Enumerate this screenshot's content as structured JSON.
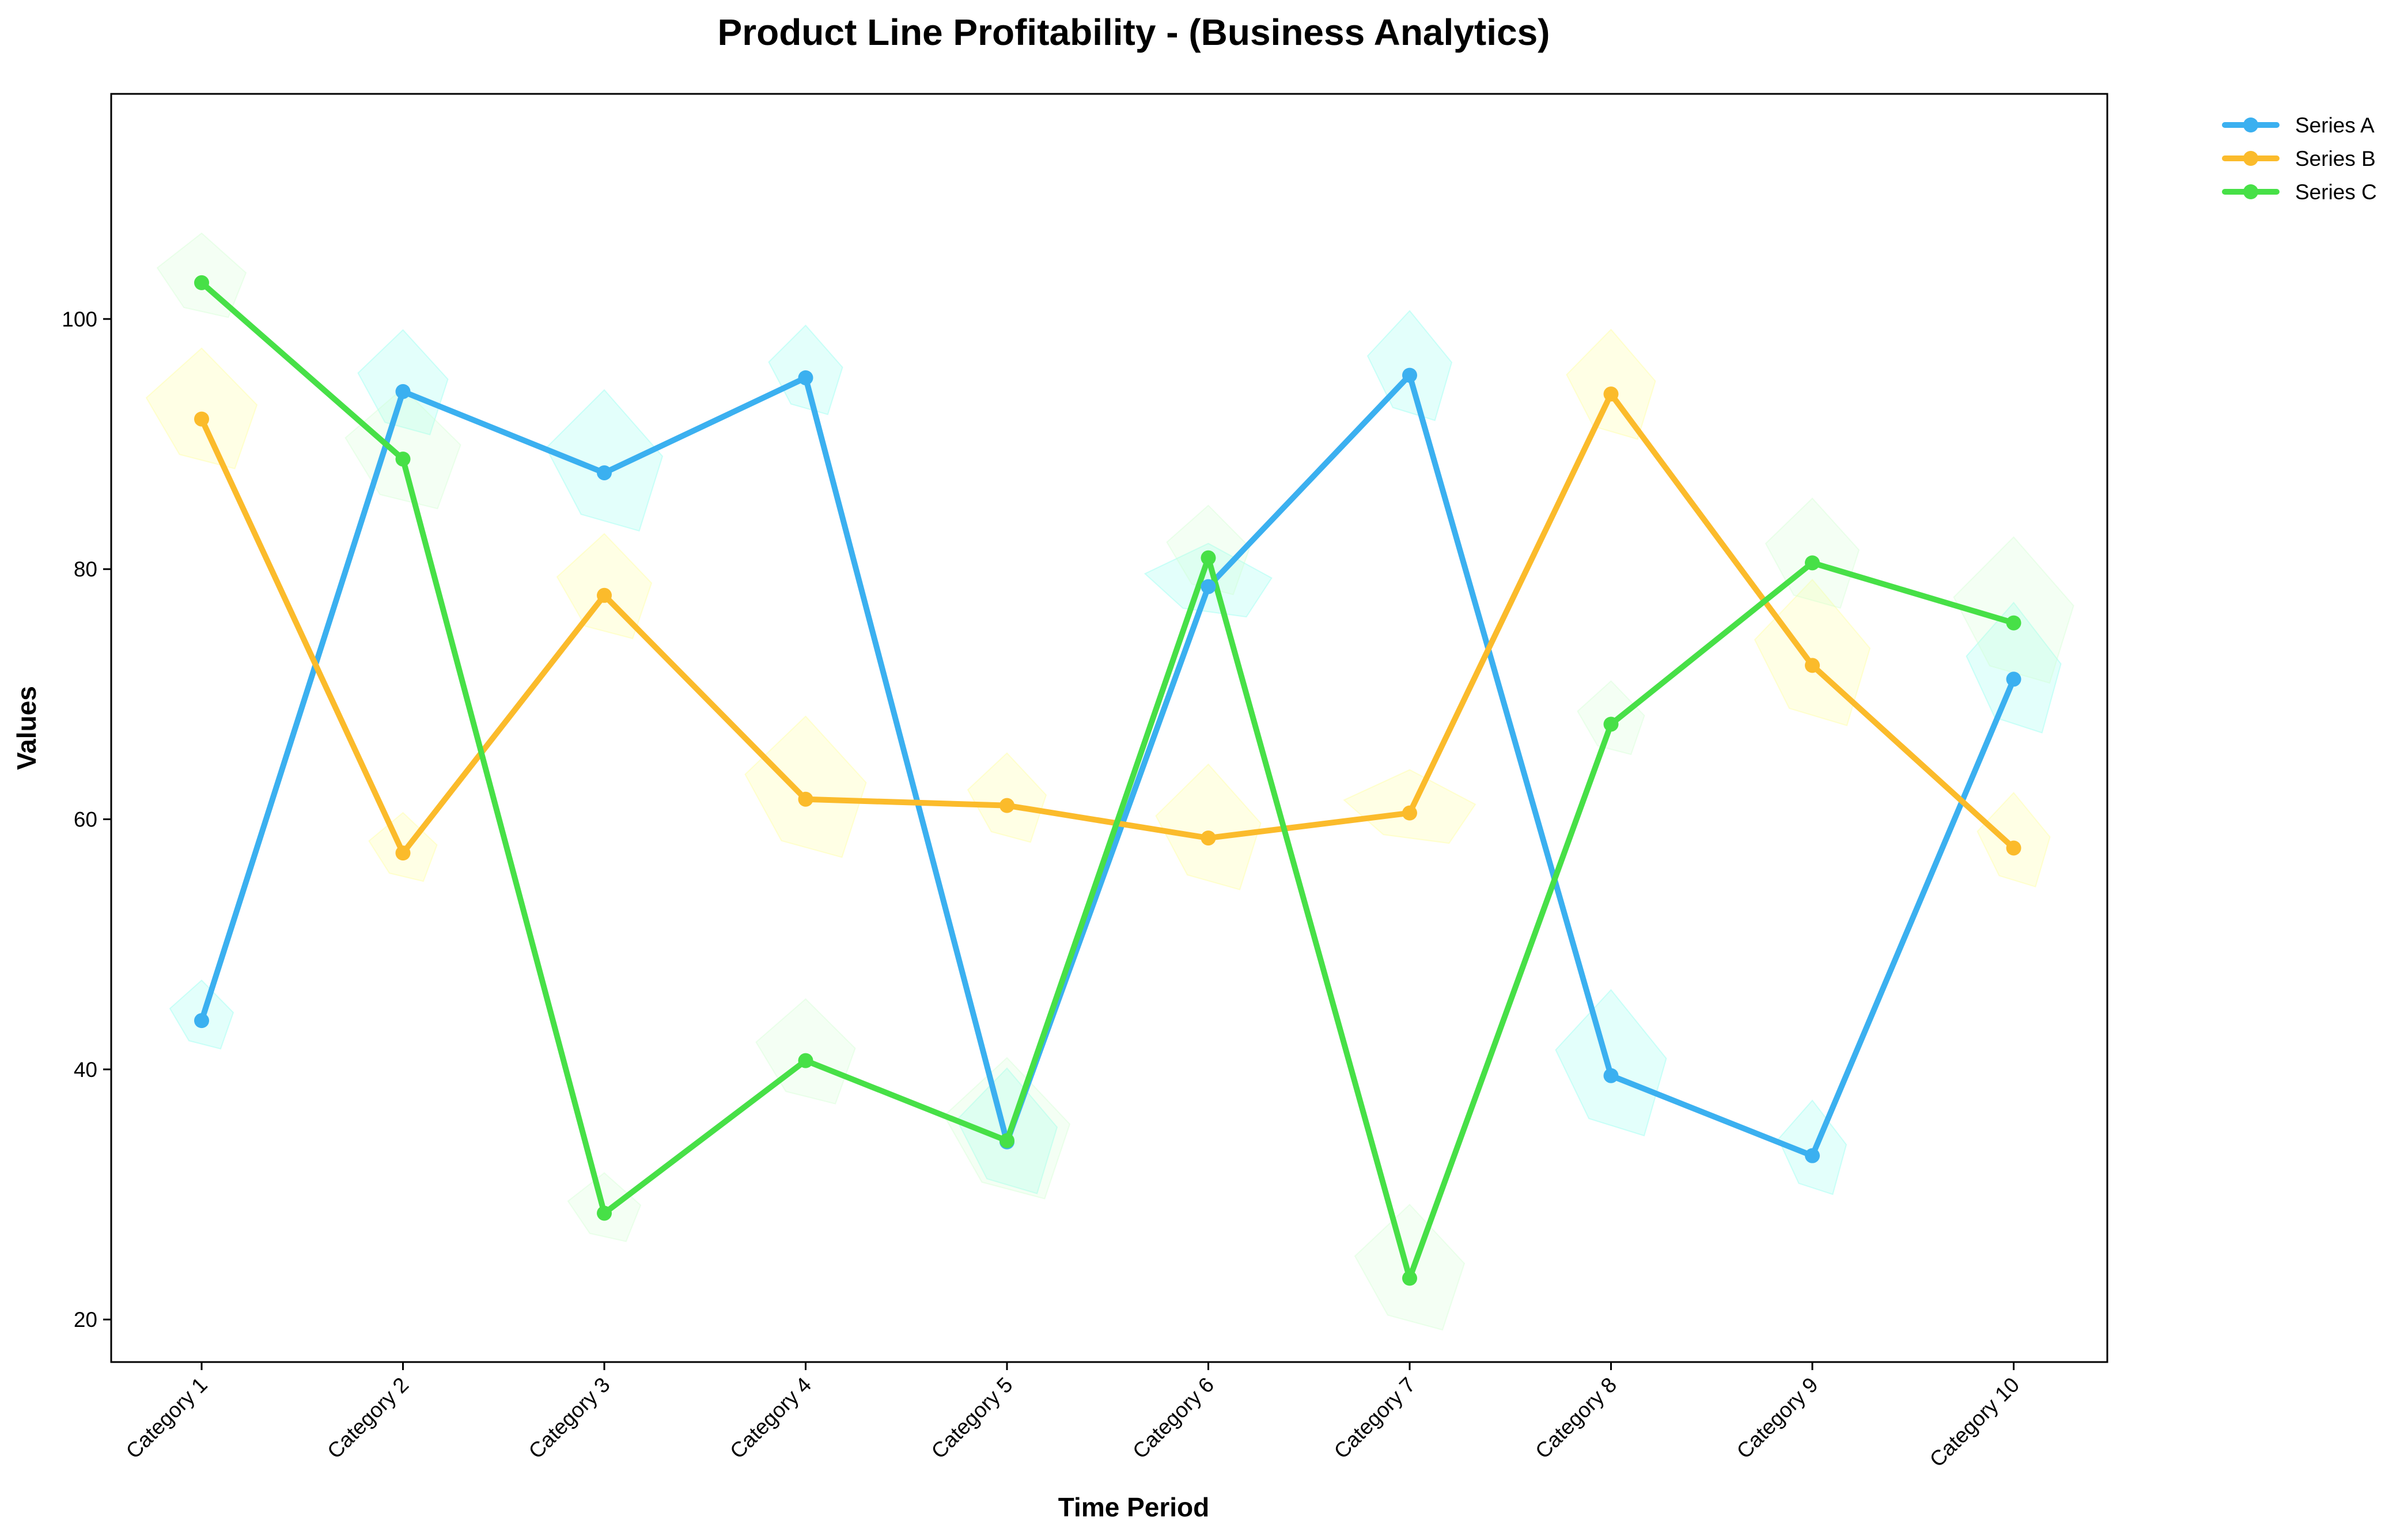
{
  "chart_data": {
    "type": "line",
    "title": "Product Line Profitability - (Business Analytics)",
    "xlabel": "Time Period",
    "ylabel": "Values",
    "categories": [
      "Category 1",
      "Category 2",
      "Category 3",
      "Category 4",
      "Category 5",
      "Category 6",
      "Category 7",
      "Category 8",
      "Category 9",
      "Category 10"
    ],
    "ylim": [
      16.6,
      118
    ],
    "yticks": [
      20,
      40,
      60,
      80,
      100
    ],
    "grid": false,
    "legend_position": "outside-top-right",
    "series": [
      {
        "name": "Series A",
        "color": "#3BB0F0",
        "values": [
          43.9,
          94.2,
          87.7,
          95.3,
          34.2,
          78.6,
          95.5,
          39.5,
          33.1,
          71.2
        ]
      },
      {
        "name": "Series B",
        "color": "#FBBB2B",
        "values": [
          92.0,
          57.3,
          77.9,
          61.6,
          61.1,
          58.5,
          60.5,
          94.0,
          72.3,
          57.7
        ]
      },
      {
        "name": "Series C",
        "color": "#47E047",
        "values": [
          102.9,
          88.8,
          28.5,
          40.7,
          34.3,
          80.9,
          23.3,
          67.6,
          80.5,
          75.7
        ]
      }
    ]
  }
}
